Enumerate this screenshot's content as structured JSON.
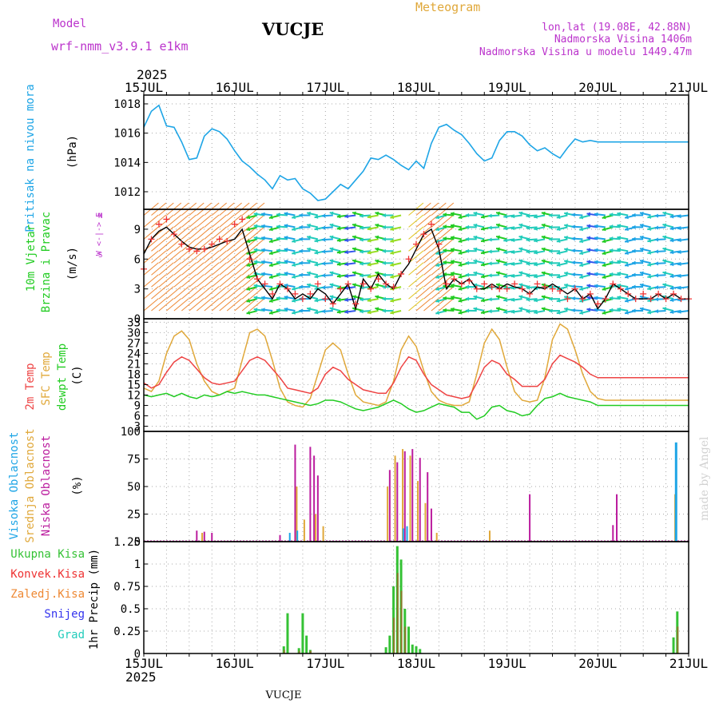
{
  "header": {
    "model_label": "Model",
    "model_name": "wrf-nmm_v3.9.1  e1km",
    "station": "VUCJE",
    "product": "Meteogram",
    "lonlat": "lon,lat (19.08E, 42.88N)",
    "elevation": "Nadmorska Visina 1406m",
    "model_elevation": "Nadmorska Visina u modelu 1449.47m",
    "year_top": "2025",
    "year_bottom": "2025",
    "footer_station": "VUCJE",
    "credit": "made by Angel"
  },
  "dates": [
    "15JUL",
    "16JUL",
    "17JUL",
    "18JUL",
    "19JUL",
    "20JUL",
    "21JUL"
  ],
  "colors": {
    "pressure": "#1ea5e6",
    "temp2m": "#ee4444",
    "sfc": "#e0a83a",
    "dewpt": "#22cc22",
    "high": "#1ea5e6",
    "mid": "#e0a83a",
    "low": "#bb1c9e",
    "total": "#35c235",
    "convective": "#ee3333",
    "frozen": "#ee8833",
    "snow": "#3333ee",
    "hail": "#22ccbb",
    "credit": "#d2d2d2"
  },
  "panels": {
    "pressure": {
      "title": "Pritisak na nivou mora",
      "unit": "(hPa)",
      "ticks": [
        "1012",
        "1014",
        "1016",
        "1018"
      ]
    },
    "wind": {
      "title1": "10m Vjetar",
      "title2": "Brzina i Pravac",
      "unit": "(m/s)",
      "compass": "W <-|-> E",
      "compass_n": "N",
      "compass_s": "S",
      "ticks": [
        "0",
        "3",
        "6",
        "9"
      ]
    },
    "temp": {
      "label_2m": "2m Temp",
      "label_sfc": "SFC Temp",
      "label_dew": "dewpt Temp",
      "unit": "(C)",
      "ticks": [
        "3",
        "6",
        "9",
        "12",
        "15",
        "18",
        "21",
        "24",
        "27",
        "30",
        "33"
      ]
    },
    "cloud": {
      "label_high": "Visoka Oblacnost",
      "label_mid": "Srednja Oblacnost",
      "label_low": "Niska Oblacnost",
      "unit": "(%)",
      "ticks": [
        "0",
        "25",
        "50",
        "75",
        "100"
      ]
    },
    "precip": {
      "legend": [
        "Ukupna Kisa",
        "Konvek.Kisa",
        "Zaledj.Kisa",
        "Snijeg",
        "Grad"
      ],
      "unit": "1hr Precip (mm)",
      "ticks": [
        "0",
        "0.25",
        "0.5",
        "0.75",
        "1",
        "1.25"
      ]
    }
  },
  "chart_data": {
    "type": "line",
    "x_unit": "hours since 15JUL 00UTC",
    "x_range": [
      0,
      144
    ],
    "pressure": {
      "ylim": [
        1010.8,
        1018.6
      ],
      "x": [
        0,
        2,
        4,
        6,
        8,
        10,
        12,
        14,
        16,
        18,
        20,
        22,
        24,
        26,
        28,
        30,
        32,
        34,
        36,
        38,
        40,
        42,
        44,
        46,
        48,
        50,
        52,
        54,
        56,
        58,
        60,
        62,
        64,
        66,
        68,
        70,
        72,
        74,
        76,
        78,
        80,
        82,
        84,
        86,
        88,
        90,
        92,
        94,
        96,
        98,
        100,
        102,
        104,
        106,
        108,
        110,
        112,
        114,
        116,
        118,
        120,
        122,
        124,
        126,
        128,
        130,
        132,
        134,
        136,
        138,
        140,
        142,
        144
      ],
      "values": [
        1016.4,
        1017.5,
        1017.9,
        1016.5,
        1016.4,
        1015.4,
        1014.2,
        1014.3,
        1015.8,
        1016.3,
        1016.1,
        1015.6,
        1014.8,
        1014.1,
        1013.7,
        1013.2,
        1012.8,
        1012.2,
        1013.1,
        1012.8,
        1012.9,
        1012.2,
        1011.9,
        1011.4,
        1011.5,
        1012.0,
        1012.5,
        1012.2,
        1012.8,
        1013.4,
        1014.3,
        1014.2,
        1014.5,
        1014.2,
        1013.8,
        1013.5,
        1014.1,
        1013.6,
        1015.3,
        1016.4,
        1016.6,
        1016.2,
        1015.9,
        1015.3,
        1014.6,
        1014.1,
        1014.3,
        1015.5,
        1016.1,
        1016.1,
        1015.8,
        1015.2,
        1014.8,
        1015.0,
        1014.6,
        1014.3,
        1015.0,
        1015.6,
        1015.4,
        1015.5,
        1015.4,
        1015.4,
        1015.4,
        1015.4,
        1015.4,
        1015.4,
        1015.4,
        1015.4,
        1015.4,
        1015.4,
        1015.4,
        1015.4,
        1015.4
      ]
    },
    "wind": {
      "ylim": [
        0,
        11
      ],
      "x": [
        0,
        2,
        4,
        6,
        8,
        10,
        12,
        14,
        16,
        18,
        20,
        22,
        24,
        26,
        28,
        30,
        32,
        34,
        36,
        38,
        40,
        42,
        44,
        46,
        48,
        50,
        52,
        54,
        56,
        58,
        60,
        62,
        64,
        66,
        68,
        70,
        72,
        74,
        76,
        78,
        80,
        82,
        84,
        86,
        88,
        90,
        92,
        94,
        96,
        98,
        100,
        102,
        104,
        106,
        108,
        110,
        112,
        114,
        116,
        118,
        120,
        122,
        124,
        126,
        128,
        130,
        132,
        134,
        136,
        138,
        140,
        142,
        144
      ],
      "speed": [
        6.5,
        8.0,
        8.8,
        9.2,
        8.5,
        7.8,
        7.2,
        7.0,
        7.0,
        7.2,
        7.5,
        7.8,
        8.0,
        9.0,
        6.5,
        4.0,
        3.0,
        2.0,
        3.5,
        3.0,
        2.0,
        2.5,
        2.0,
        3.0,
        2.5,
        1.5,
        2.5,
        3.5,
        1.0,
        4.0,
        3.0,
        4.5,
        3.5,
        3.0,
        4.5,
        5.5,
        7.0,
        8.5,
        9.0,
        7.0,
        3.0,
        4.0,
        3.5,
        4.0,
        3.0,
        3.0,
        3.5,
        3.0,
        3.5,
        3.2,
        3.0,
        2.5,
        3.2,
        3.0,
        3.5,
        3.0,
        2.5,
        3.0,
        2.0,
        2.5,
        1.0,
        2.0,
        3.5,
        3.0,
        2.5,
        2.0,
        2.0,
        2.0,
        2.5,
        2.0,
        2.5,
        2.0,
        2.0
      ],
      "gust": [
        5.0,
        8.0,
        9.5,
        10.0,
        8.5,
        7.5,
        7.0,
        6.8,
        7.0,
        7.5,
        8.0,
        7.8,
        9.5,
        10.0,
        6.0,
        4.0,
        3.5,
        2.5,
        3.5,
        3.0,
        2.5,
        2.0,
        2.5,
        3.5,
        2.0,
        1.5,
        3.0,
        3.5,
        1.5,
        3.5,
        3.0,
        4.0,
        3.5,
        3.2,
        4.5,
        6.0,
        7.5,
        8.5,
        9.5,
        7.5,
        3.5,
        4.0,
        3.5,
        3.8,
        3.0,
        3.5,
        3.2,
        3.0,
        3.0,
        3.5,
        3.0,
        2.5,
        3.5,
        3.2,
        3.0,
        2.8,
        2.0,
        3.0,
        2.0,
        2.5,
        1.5,
        2.0,
        3.5,
        3.0,
        2.5,
        2.0,
        2.5,
        2.0,
        2.5,
        2.0,
        2.5,
        2.0,
        2.0
      ]
    },
    "temperature": {
      "ylim": [
        1.5,
        34
      ],
      "x": [
        0,
        2,
        4,
        6,
        8,
        10,
        12,
        14,
        16,
        18,
        20,
        22,
        24,
        26,
        28,
        30,
        32,
        34,
        36,
        38,
        40,
        42,
        44,
        46,
        48,
        50,
        52,
        54,
        56,
        58,
        60,
        62,
        64,
        66,
        68,
        70,
        72,
        74,
        76,
        78,
        80,
        82,
        84,
        86,
        88,
        90,
        92,
        94,
        96,
        98,
        100,
        102,
        104,
        106,
        108,
        110,
        112,
        114,
        116,
        118,
        120,
        122,
        124,
        126,
        128,
        130,
        132,
        134,
        136,
        138,
        140,
        142,
        144
      ],
      "temp2m": [
        15.5,
        14.0,
        15.0,
        18.5,
        21.5,
        23.0,
        22.0,
        19.5,
        17.0,
        15.5,
        15.0,
        15.5,
        16.0,
        19.0,
        22.0,
        23.0,
        22.0,
        19.5,
        17.0,
        14.0,
        13.5,
        13.0,
        12.5,
        14.0,
        18.0,
        20.0,
        19.0,
        16.5,
        15.0,
        13.5,
        13.0,
        12.5,
        12.5,
        15.5,
        20.0,
        23.0,
        22.0,
        18.0,
        15.0,
        13.5,
        12.0,
        11.5,
        11.0,
        11.5,
        15.5,
        20.0,
        22.0,
        21.0,
        18.0,
        16.5,
        14.5,
        14.5,
        14.5,
        16.5,
        21.0,
        23.5,
        22.5,
        21.5,
        20.0,
        18.0,
        17.0,
        17.0,
        17.0,
        17.0,
        17.0,
        17.0,
        17.0,
        17.0,
        17.0,
        17.0,
        17.0,
        17.0,
        17.0
      ],
      "sfc": [
        14.0,
        13.0,
        16.0,
        24.0,
        29.0,
        30.5,
        28.0,
        21.0,
        16.0,
        13.0,
        12.0,
        13.0,
        14.0,
        22.0,
        30.0,
        31.0,
        29.0,
        22.0,
        14.0,
        10.0,
        9.0,
        8.5,
        11.0,
        18.0,
        25.0,
        27.0,
        25.0,
        18.0,
        12.0,
        10.0,
        9.5,
        9.0,
        10.0,
        16.0,
        25.0,
        29.0,
        26.0,
        19.0,
        13.0,
        10.5,
        9.5,
        9.0,
        9.0,
        10.0,
        18.0,
        27.0,
        31.0,
        28.0,
        20.0,
        13.0,
        10.5,
        10.0,
        10.5,
        17.0,
        28.0,
        32.5,
        31.0,
        25.0,
        18.0,
        13.0,
        11.0,
        10.5,
        10.5,
        10.5,
        10.5,
        10.5,
        10.5,
        10.5,
        10.5,
        10.5,
        10.5,
        10.5,
        10.5
      ],
      "dewpt": [
        12.0,
        11.5,
        12.0,
        12.5,
        11.5,
        12.5,
        11.5,
        11.0,
        12.0,
        11.5,
        12.0,
        13.0,
        12.5,
        13.0,
        12.5,
        12.0,
        12.0,
        11.5,
        11.0,
        10.5,
        10.0,
        9.5,
        9.0,
        9.5,
        10.5,
        10.5,
        10.0,
        9.0,
        8.0,
        7.5,
        8.0,
        8.5,
        9.5,
        10.5,
        9.5,
        8.0,
        7.0,
        7.5,
        8.5,
        9.5,
        9.0,
        8.5,
        7.0,
        7.0,
        5.0,
        6.0,
        8.5,
        9.0,
        7.5,
        7.0,
        6.0,
        6.5,
        9.0,
        11.0,
        11.5,
        12.5,
        11.5,
        11.0,
        10.5,
        10.0,
        9.0,
        9.0,
        9.0,
        9.0,
        9.0,
        9.0,
        9.0,
        9.0,
        9.0,
        9.0,
        9.0,
        9.0,
        9.0
      ]
    },
    "cloud": {
      "type": "bar",
      "ylim": [
        0,
        100
      ],
      "low": [
        {
          "x": 14,
          "v": 10
        },
        {
          "x": 16,
          "v": 9
        },
        {
          "x": 18,
          "v": 8
        },
        {
          "x": 36,
          "v": 6
        },
        {
          "x": 40,
          "v": 88
        },
        {
          "x": 44,
          "v": 86
        },
        {
          "x": 45,
          "v": 78
        },
        {
          "x": 46,
          "v": 60
        },
        {
          "x": 65,
          "v": 65
        },
        {
          "x": 67,
          "v": 72
        },
        {
          "x": 69,
          "v": 82
        },
        {
          "x": 71,
          "v": 84
        },
        {
          "x": 73,
          "v": 76
        },
        {
          "x": 75,
          "v": 63
        },
        {
          "x": 76,
          "v": 30
        },
        {
          "x": 102,
          "v": 43
        },
        {
          "x": 124,
          "v": 15
        },
        {
          "x": 125,
          "v": 43
        }
      ],
      "mid": [
        {
          "x": 15,
          "v": 8
        },
        {
          "x": 40,
          "v": 50
        },
        {
          "x": 42,
          "v": 20
        },
        {
          "x": 45,
          "v": 25
        },
        {
          "x": 47,
          "v": 14
        },
        {
          "x": 64,
          "v": 50
        },
        {
          "x": 66,
          "v": 78
        },
        {
          "x": 68,
          "v": 84
        },
        {
          "x": 70,
          "v": 78
        },
        {
          "x": 72,
          "v": 55
        },
        {
          "x": 74,
          "v": 35
        },
        {
          "x": 77,
          "v": 8
        },
        {
          "x": 91,
          "v": 10
        },
        {
          "x": 140,
          "v": 43
        }
      ],
      "high": [
        {
          "x": 39,
          "v": 8
        },
        {
          "x": 41,
          "v": 10
        },
        {
          "x": 69,
          "v": 12
        },
        {
          "x": 70,
          "v": 14
        },
        {
          "x": 141,
          "v": 90
        }
      ]
    },
    "precip": {
      "type": "bar",
      "ylim": [
        0,
        1.25
      ],
      "total": [
        {
          "x": 37,
          "v": 0.08
        },
        {
          "x": 38,
          "v": 0.45
        },
        {
          "x": 41,
          "v": 0.06
        },
        {
          "x": 42,
          "v": 0.45
        },
        {
          "x": 43,
          "v": 0.2
        },
        {
          "x": 44,
          "v": 0.04
        },
        {
          "x": 64,
          "v": 0.07
        },
        {
          "x": 65,
          "v": 0.2
        },
        {
          "x": 66,
          "v": 0.75
        },
        {
          "x": 67,
          "v": 1.2
        },
        {
          "x": 68,
          "v": 1.05
        },
        {
          "x": 69,
          "v": 0.5
        },
        {
          "x": 70,
          "v": 0.3
        },
        {
          "x": 71,
          "v": 0.1
        },
        {
          "x": 72,
          "v": 0.08
        },
        {
          "x": 73,
          "v": 0.05
        },
        {
          "x": 140,
          "v": 0.18
        },
        {
          "x": 141,
          "v": 0.47
        }
      ],
      "convective": [
        {
          "x": 37,
          "v": 0.04
        },
        {
          "x": 41,
          "v": 0.03
        },
        {
          "x": 44,
          "v": 0.03
        },
        {
          "x": 66,
          "v": 0.4
        },
        {
          "x": 67,
          "v": 0.9
        },
        {
          "x": 68,
          "v": 0.7
        },
        {
          "x": 69,
          "v": 0.3
        },
        {
          "x": 141,
          "v": 0.3
        }
      ]
    }
  }
}
